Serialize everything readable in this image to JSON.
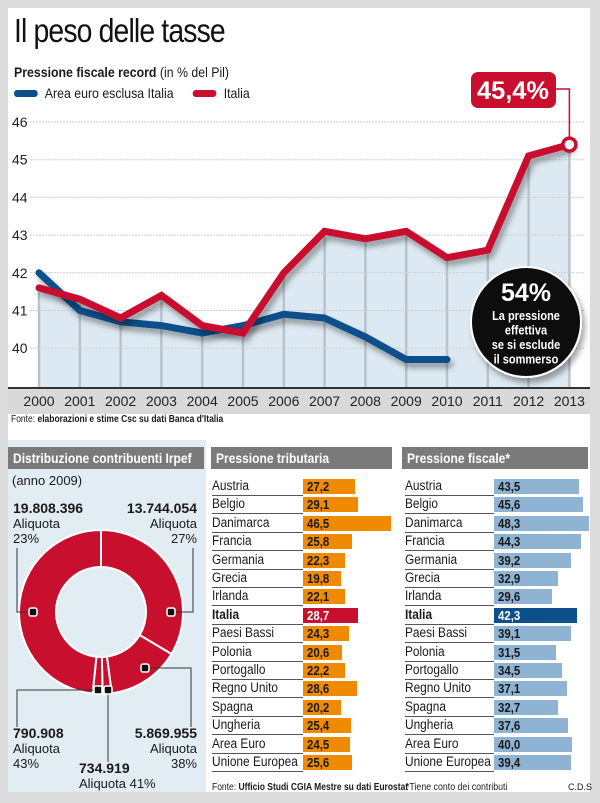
{
  "title": "Il peso delle tasse",
  "subtitle_bold": "Pressione fiscale record",
  "subtitle_rest": " (in % del Pil)",
  "legend": [
    {
      "label": "Area euro esclusa Italia",
      "color": "#0d4f8b"
    },
    {
      "label": "Italia",
      "color": "#c8102e"
    }
  ],
  "callout_value": "45,4%",
  "bubble": {
    "value": "54%",
    "lines": [
      "La pressione",
      "effettiva",
      "se si esclude",
      "il sommerso"
    ]
  },
  "source1": {
    "prefix": "Fonte: ",
    "text": "elaborazioni e stime Csc su dati Banca d'Italia"
  },
  "chart_data": [
    {
      "type": "line",
      "title": "Pressione fiscale record (in % del Pil)",
      "x": [
        "2000",
        "2001",
        "2002",
        "2003",
        "2004",
        "2005",
        "2006",
        "2007",
        "2008",
        "2009",
        "2010",
        "2011",
        "2012",
        "2013"
      ],
      "ylim": [
        39.2,
        46.3
      ],
      "yticks": [
        40,
        41,
        42,
        43,
        44,
        45,
        46
      ],
      "grid": true,
      "legend_position": "top-left",
      "series": [
        {
          "name": "Area euro esclusa Italia",
          "color": "#0d4f8b",
          "values": [
            42.0,
            41.0,
            40.7,
            40.6,
            40.4,
            40.6,
            40.9,
            40.8,
            40.3,
            39.7,
            39.7,
            null,
            null,
            null
          ]
        },
        {
          "name": "Italia",
          "color": "#c8102e",
          "values": [
            41.6,
            41.3,
            40.8,
            41.4,
            40.6,
            40.4,
            42.0,
            43.1,
            42.9,
            43.1,
            42.4,
            42.6,
            45.1,
            45.4
          ]
        }
      ],
      "annotations": [
        "45,4%",
        "54% La pressione effettiva se si esclude il sommerso"
      ]
    },
    {
      "type": "pie",
      "title": "Distribuzione contribuenti Irpef",
      "subtitle": "(anno 2009)",
      "slices": [
        {
          "label": "Aliquota 23%",
          "value": 19808396,
          "display": "19.808.396"
        },
        {
          "label": "Aliquota 27%",
          "value": 13744054,
          "display": "13.744.054"
        },
        {
          "label": "Aliquota 38%",
          "value": 5869955,
          "display": "5.869.955"
        },
        {
          "label": "Aliquota 41%",
          "value": 734919,
          "display": "734.919"
        },
        {
          "label": "Aliquota 43%",
          "value": 790908,
          "display": "790.908"
        }
      ]
    },
    {
      "type": "bar",
      "title": "Pressione tributaria",
      "categories": [
        "Austria",
        "Belgio",
        "Danimarca",
        "Francia",
        "Germania",
        "Grecia",
        "Irlanda",
        "Italia",
        "Paesi Bassi",
        "Polonia",
        "Portogallo",
        "Regno Unito",
        "Spagna",
        "Ungheria",
        "Area Euro",
        "Unione Europea"
      ],
      "values": [
        27.2,
        29.1,
        46.5,
        25.8,
        22.3,
        19.8,
        22.1,
        28.7,
        24.3,
        20.6,
        22.2,
        28.6,
        20.2,
        25.4,
        24.5,
        25.6
      ],
      "labels": [
        "27,2",
        "29,1",
        "46,5",
        "25,8",
        "22,3",
        "19,8",
        "22,1",
        "28,7",
        "24,3",
        "20,6",
        "22,2",
        "28,6",
        "20,2",
        "25,4",
        "24,5",
        "25,6"
      ],
      "highlight": "Italia",
      "color": "#f08a00",
      "highlight_color": "#c8102e"
    },
    {
      "type": "bar",
      "title": "Pressione fiscale*",
      "categories": [
        "Austria",
        "Belgio",
        "Danimarca",
        "Francia",
        "Germania",
        "Grecia",
        "Irlanda",
        "Italia",
        "Paesi Bassi",
        "Polonia",
        "Portogallo",
        "Regno Unito",
        "Spagna",
        "Ungheria",
        "Area Euro",
        "Unione Europea"
      ],
      "values": [
        43.5,
        45.6,
        48.3,
        44.3,
        39.2,
        32.9,
        29.6,
        42.3,
        39.1,
        31.5,
        34.5,
        37.1,
        32.7,
        37.6,
        40.0,
        39.4
      ],
      "labels": [
        "43,5",
        "45,6",
        "48,3",
        "44,3",
        "39,2",
        "32,9",
        "29,6",
        "42,3",
        "39,1",
        "31,5",
        "34,5",
        "37,1",
        "32,7",
        "37,6",
        "40,0",
        "39,4"
      ],
      "highlight": "Italia",
      "color": "#8fb3d3",
      "highlight_color": "#0d4f8b"
    }
  ],
  "source2": {
    "prefix": "Fonte: ",
    "text": "Ufficio Studi CGIA Mestre su dati Eurostat"
  },
  "note": "*Tiene conto dei contributi",
  "credit": "C.D.S"
}
